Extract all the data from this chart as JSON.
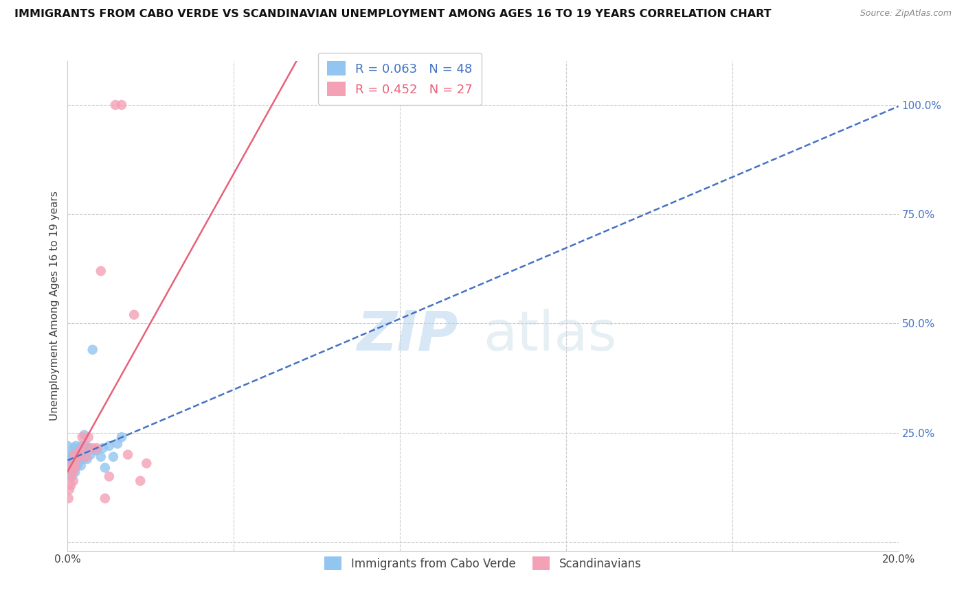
{
  "title": "IMMIGRANTS FROM CABO VERDE VS SCANDINAVIAN UNEMPLOYMENT AMONG AGES 16 TO 19 YEARS CORRELATION CHART",
  "source": "Source: ZipAtlas.com",
  "ylabel": "Unemployment Among Ages 16 to 19 years",
  "right_yticks": [
    0.0,
    0.25,
    0.5,
    0.75,
    1.0
  ],
  "right_yticklabels": [
    "",
    "25.0%",
    "50.0%",
    "75.0%",
    "100.0%"
  ],
  "xlim": [
    0.0,
    0.2
  ],
  "ylim": [
    -0.02,
    1.1
  ],
  "cabo_verde_R": 0.063,
  "cabo_verde_N": 48,
  "scandinavian_R": 0.452,
  "scandinavian_N": 27,
  "cabo_verde_color": "#92C5F0",
  "scandinavian_color": "#F4A0B5",
  "cabo_verde_line_color": "#4472C4",
  "scandinavian_line_color": "#E8607A",
  "cabo_verde_x": [
    0.0,
    0.0002,
    0.0003,
    0.0004,
    0.0005,
    0.0006,
    0.0007,
    0.0008,
    0.001,
    0.001,
    0.0012,
    0.0013,
    0.0015,
    0.0016,
    0.0017,
    0.0018,
    0.002,
    0.0021,
    0.0022,
    0.0023,
    0.0025,
    0.0026,
    0.0027,
    0.0028,
    0.003,
    0.0031,
    0.0032,
    0.0033,
    0.0035,
    0.0036,
    0.0038,
    0.004,
    0.0042,
    0.0043,
    0.0045,
    0.0047,
    0.005,
    0.0055,
    0.006,
    0.0065,
    0.007,
    0.008,
    0.0085,
    0.009,
    0.01,
    0.011,
    0.012,
    0.013
  ],
  "cabo_verde_y": [
    0.22,
    0.18,
    0.2,
    0.17,
    0.155,
    0.195,
    0.185,
    0.165,
    0.175,
    0.15,
    0.195,
    0.16,
    0.215,
    0.185,
    0.2,
    0.16,
    0.22,
    0.21,
    0.19,
    0.175,
    0.205,
    0.185,
    0.215,
    0.2,
    0.21,
    0.19,
    0.175,
    0.22,
    0.195,
    0.205,
    0.19,
    0.245,
    0.215,
    0.2,
    0.22,
    0.19,
    0.215,
    0.2,
    0.44,
    0.21,
    0.21,
    0.195,
    0.215,
    0.17,
    0.22,
    0.195,
    0.225,
    0.24
  ],
  "scandinavian_x": [
    0.0002,
    0.0004,
    0.0006,
    0.0008,
    0.001,
    0.0012,
    0.0014,
    0.0016,
    0.0018,
    0.002,
    0.0025,
    0.003,
    0.0035,
    0.004,
    0.0045,
    0.005,
    0.006,
    0.007,
    0.008,
    0.009,
    0.01,
    0.0115,
    0.013,
    0.0145,
    0.016,
    0.0175,
    0.019
  ],
  "scandinavian_y": [
    0.1,
    0.12,
    0.15,
    0.13,
    0.175,
    0.16,
    0.14,
    0.2,
    0.17,
    0.185,
    0.195,
    0.21,
    0.24,
    0.22,
    0.195,
    0.24,
    0.215,
    0.215,
    0.62,
    0.1,
    0.15,
    1.0,
    1.0,
    0.2,
    0.52,
    0.14,
    0.18
  ],
  "watermark_zip": "ZIP",
  "watermark_atlas": "atlas",
  "xtick_positions": [
    0.0,
    0.04,
    0.08,
    0.12,
    0.16,
    0.2
  ],
  "xtick_labels": [
    "0.0%",
    "",
    "",
    "",
    "",
    "20.0%"
  ],
  "legend_cabo_label": "R = 0.063   N = 48",
  "legend_scan_label": "R = 0.452   N = 27",
  "legend_cabo_full": "Immigrants from Cabo Verde",
  "legend_scan_full": "Scandinavians"
}
